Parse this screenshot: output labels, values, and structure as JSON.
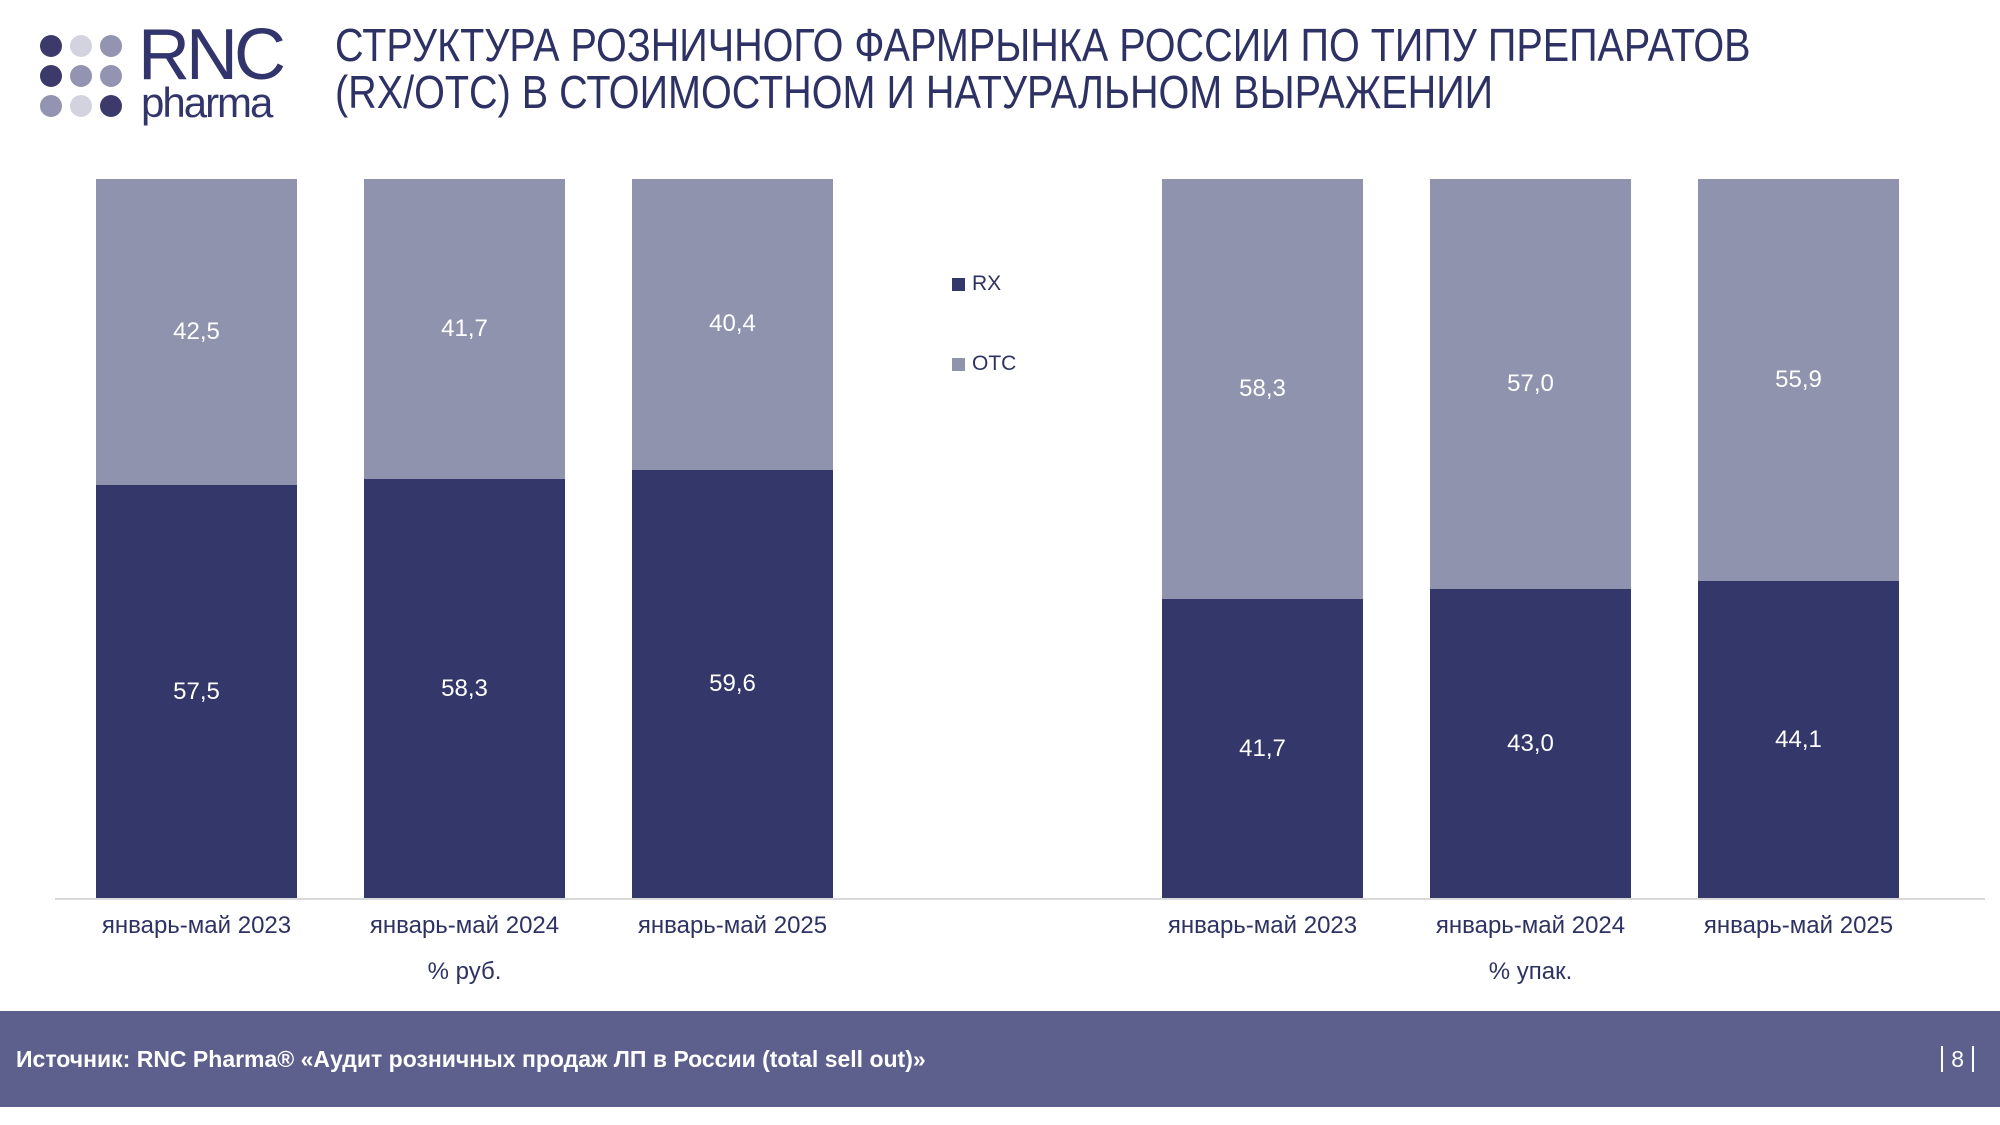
{
  "logo": {
    "brand": "RNC",
    "sub": "pharma",
    "dot_colors": [
      [
        "#3b3a6b",
        "#d2d3de",
        "#9294b1"
      ],
      [
        "#3b3a6b",
        "#9294b1",
        "#9294b1"
      ],
      [
        "#9294b1",
        "#d2d3de",
        "#3b3a6b"
      ]
    ]
  },
  "title": {
    "line1": "СТРУКТУРА РОЗНИЧНОГО ФАРМРЫНКА РОССИИ ПО ТИПУ ПРЕПАРАТОВ",
    "line2": "(RX/OTC) В СТОИМОСТНОМ И НАТУРАЛЬНОМ ВЫРАЖЕНИИ"
  },
  "legend": {
    "items": [
      {
        "label": "RX",
        "color": "#333769"
      },
      {
        "label": "OTC",
        "color": "#9093ae"
      }
    ]
  },
  "chart_data": [
    {
      "type": "bar",
      "stacked": true,
      "unit_label": "% руб.",
      "categories": [
        "январь-май 2023",
        "январь-май 2024",
        "январь-май 2025"
      ],
      "series": [
        {
          "name": "RX",
          "color": "#333769",
          "values": [
            57.5,
            58.3,
            59.6
          ]
        },
        {
          "name": "OTC",
          "color": "#9093ae",
          "values": [
            42.5,
            41.7,
            40.4
          ]
        }
      ],
      "ylim": [
        0,
        100
      ],
      "grid": false,
      "value_label_format": "comma-decimal, 1 digit"
    },
    {
      "type": "bar",
      "stacked": true,
      "unit_label": "% упак.",
      "categories": [
        "январь-май 2023",
        "январь-май 2024",
        "январь-май 2025"
      ],
      "series": [
        {
          "name": "RX",
          "color": "#333769",
          "values": [
            41.7,
            43.0,
            44.1
          ]
        },
        {
          "name": "OTC",
          "color": "#9093ae",
          "values": [
            58.3,
            57.0,
            55.9
          ]
        }
      ],
      "ylim": [
        0,
        100
      ],
      "grid": false,
      "value_label_format": "comma-decimal, 1 digit"
    }
  ],
  "footer": {
    "source": "Источник: RNC Pharma® «Аудит розничных продаж ЛП в России (total sell out)»",
    "page": "8"
  }
}
